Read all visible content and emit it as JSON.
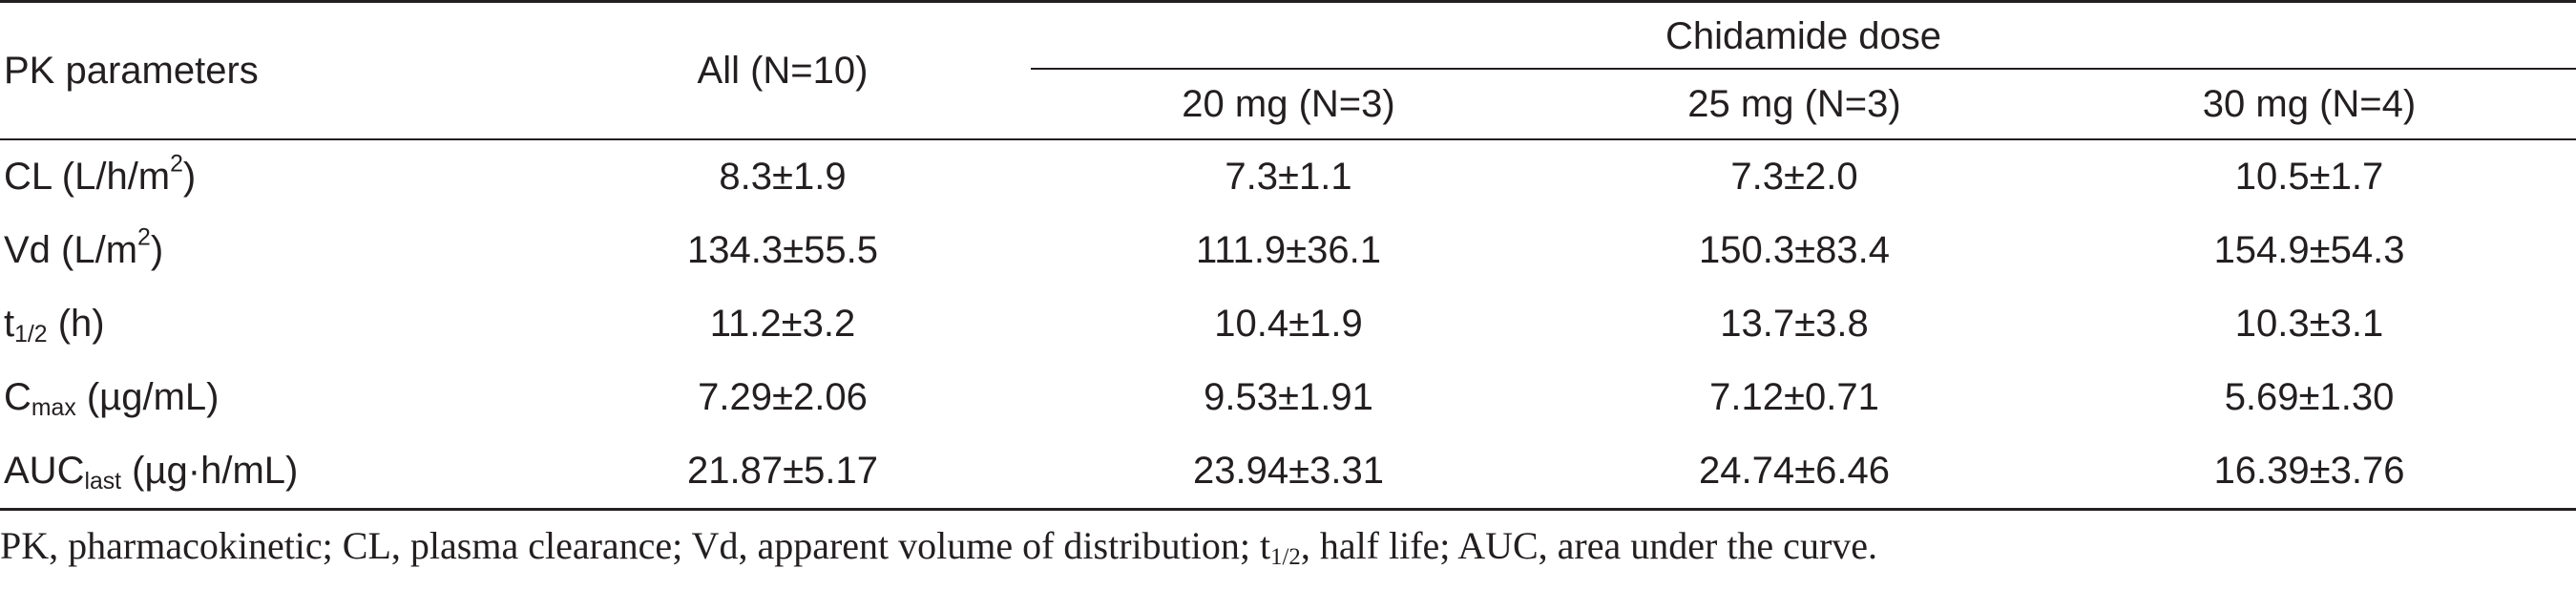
{
  "table": {
    "header": {
      "param_label": "PK parameters",
      "all_label": "All (N=10)",
      "group_label": "Chidamide dose",
      "dose_labels": [
        "20 mg (N=3)",
        "25 mg (N=3)",
        "30 mg (N=4)"
      ]
    },
    "rows": [
      {
        "param_main": "CL (L/h/m",
        "param_sup": "2",
        "param_tail": ")",
        "values": [
          "8.3±1.9",
          "7.3±1.1",
          "7.3±2.0",
          "10.5±1.7"
        ]
      },
      {
        "param_main": "Vd (L/m",
        "param_sup": "2",
        "param_tail": ")",
        "values": [
          "134.3±55.5",
          "111.9±36.1",
          "150.3±83.4",
          "154.9±54.3"
        ]
      },
      {
        "param_main": "t",
        "param_sub": "1/2",
        "param_tail": " (h)",
        "values": [
          "11.2±3.2",
          "10.4±1.9",
          "13.7±3.8",
          "10.3±3.1"
        ]
      },
      {
        "param_main": "C",
        "param_sub": "max",
        "param_tail": " (µg/mL)",
        "values": [
          "7.29±2.06",
          "9.53±1.91",
          "7.12±0.71",
          "5.69±1.30"
        ]
      },
      {
        "param_main": "AUC",
        "param_sub": "last",
        "param_tail": " (µg·h/mL)",
        "values": [
          "21.87±5.17",
          "23.94±3.31",
          "24.74±6.46",
          "16.39±3.76"
        ]
      }
    ]
  },
  "footnote": {
    "part1": "PK, pharmacokinetic; CL, plasma clearance; Vd, apparent volume of distribution; t",
    "sub": "1/2",
    "part2": ", half life; AUC, area under the curve."
  }
}
